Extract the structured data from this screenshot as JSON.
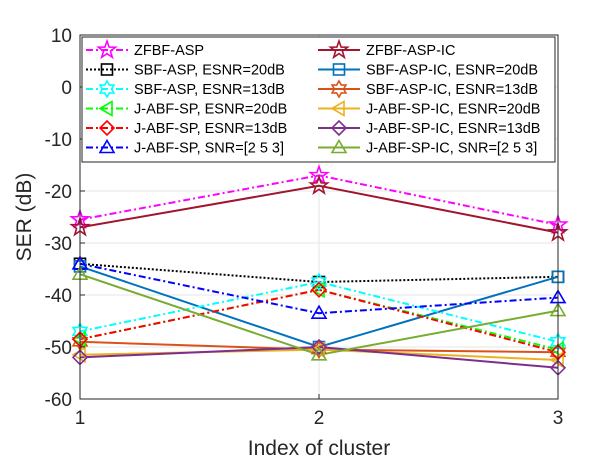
{
  "chart_data": {
    "type": "line",
    "xlabel": "Index of cluster",
    "ylabel": "SER (dB)",
    "x": [
      1,
      2,
      3
    ],
    "xticks": [
      "1",
      "2",
      "3"
    ],
    "ylim": [
      -60,
      10
    ],
    "yticks": [
      "10",
      "0",
      "-10",
      "-20",
      "-30",
      "-40",
      "-50",
      "-60"
    ],
    "grid": true,
    "legend_position": "top",
    "legend_columns": 2,
    "series": [
      {
        "name": "ZFBF-ASP",
        "values": [
          -25.5,
          -17.0,
          -26.5
        ],
        "color": "#ff00ff",
        "dash": "7,3,2,3",
        "marker": "star"
      },
      {
        "name": "ZFBF-ASP-IC",
        "values": [
          -27.0,
          -19.0,
          -28.0
        ],
        "color": "#a2142f",
        "dash": "",
        "marker": "star"
      },
      {
        "name": "SBF-ASP, ESNR=20dB",
        "values": [
          -34.0,
          -37.5,
          -36.5
        ],
        "color": "#000000",
        "dash": "2,2",
        "marker": "square"
      },
      {
        "name": "SBF-ASP-IC, ESNR=20dB",
        "values": [
          -34.5,
          -50.0,
          -36.5
        ],
        "color": "#0072bd",
        "dash": "",
        "marker": "square"
      },
      {
        "name": "SBF-ASP, ESNR=13dB",
        "values": [
          -47.0,
          -37.5,
          -49.0
        ],
        "color": "#00ffff",
        "dash": "7,3,2,3",
        "marker": "hexagram"
      },
      {
        "name": "SBF-ASP-IC, ESNR=13dB",
        "values": [
          -49.0,
          -50.5,
          -51.0
        ],
        "color": "#d95319",
        "dash": "",
        "marker": "hexagram"
      },
      {
        "name": "J-ABF-SP, ESNR=20dB",
        "values": [
          -48.5,
          -39.0,
          -50.5
        ],
        "color": "#00ff00",
        "dash": "7,3,2,3",
        "marker": "triangle-left"
      },
      {
        "name": "J-ABF-SP-IC, ESNR=20dB",
        "values": [
          -51.5,
          -50.5,
          -52.5
        ],
        "color": "#edb120",
        "dash": "",
        "marker": "triangle-left"
      },
      {
        "name": "J-ABF-SP, ESNR=13dB",
        "values": [
          -48.5,
          -39.0,
          -51.0
        ],
        "color": "#ff0000",
        "dash": "7,3,2,3",
        "marker": "diamond"
      },
      {
        "name": "J-ABF-SP-IC, ESNR=13dB",
        "values": [
          -52.0,
          -50.0,
          -54.0
        ],
        "color": "#7e2f8e",
        "dash": "",
        "marker": "diamond"
      },
      {
        "name": "J-ABF-SP, SNR=[2 5 3]",
        "values": [
          -34.0,
          -43.5,
          -40.5
        ],
        "color": "#0000ff",
        "dash": "7,3,2,3",
        "marker": "triangle-up"
      },
      {
        "name": "J-ABF-SP-IC, SNR=[2 5 3]",
        "values": [
          -36.0,
          -51.5,
          -43.0
        ],
        "color": "#77ac30",
        "dash": "",
        "marker": "triangle-up"
      }
    ]
  }
}
